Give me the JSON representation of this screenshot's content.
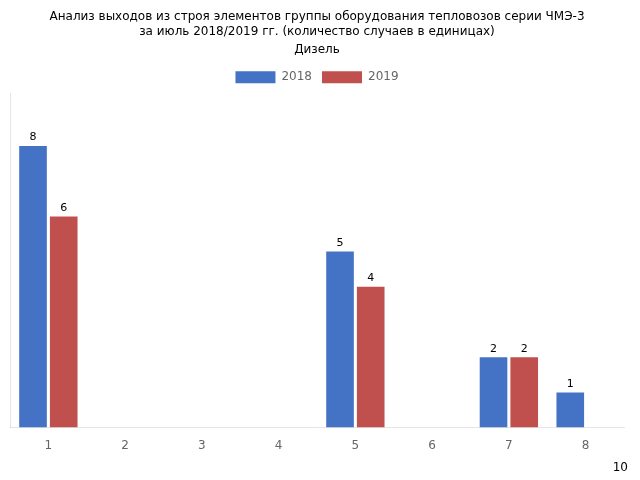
{
  "chart_data": {
    "type": "bar",
    "title": [
      "Анализ выходов из строя элементов группы оборудования тепловозов серии ЧМЭ-3",
      "за июль 2018/2019 гг. (количество случаев в единицах)"
    ],
    "subtitle": "Дизель",
    "annotations": [
      "10"
    ],
    "categories": [
      1,
      2,
      3,
      4,
      5,
      6,
      7,
      8
    ],
    "series": [
      {
        "name": "2018",
        "color": "#4472C4",
        "values": [
          8,
          0,
          0,
          0,
          5,
          0,
          2,
          1
        ],
        "value_labels": [
          "8",
          null,
          null,
          null,
          "5",
          null,
          "2",
          "1"
        ]
      },
      {
        "name": "2019",
        "color": "#C0504D",
        "values": [
          6,
          0,
          0,
          0,
          4,
          0,
          2,
          0
        ],
        "value_labels": [
          "6",
          null,
          null,
          null,
          "4",
          null,
          "2",
          null
        ]
      }
    ],
    "ylim": [
      0,
      9.5
    ],
    "grid": false,
    "legend": "top",
    "data_labels": true,
    "tick_labels": "x"
  }
}
